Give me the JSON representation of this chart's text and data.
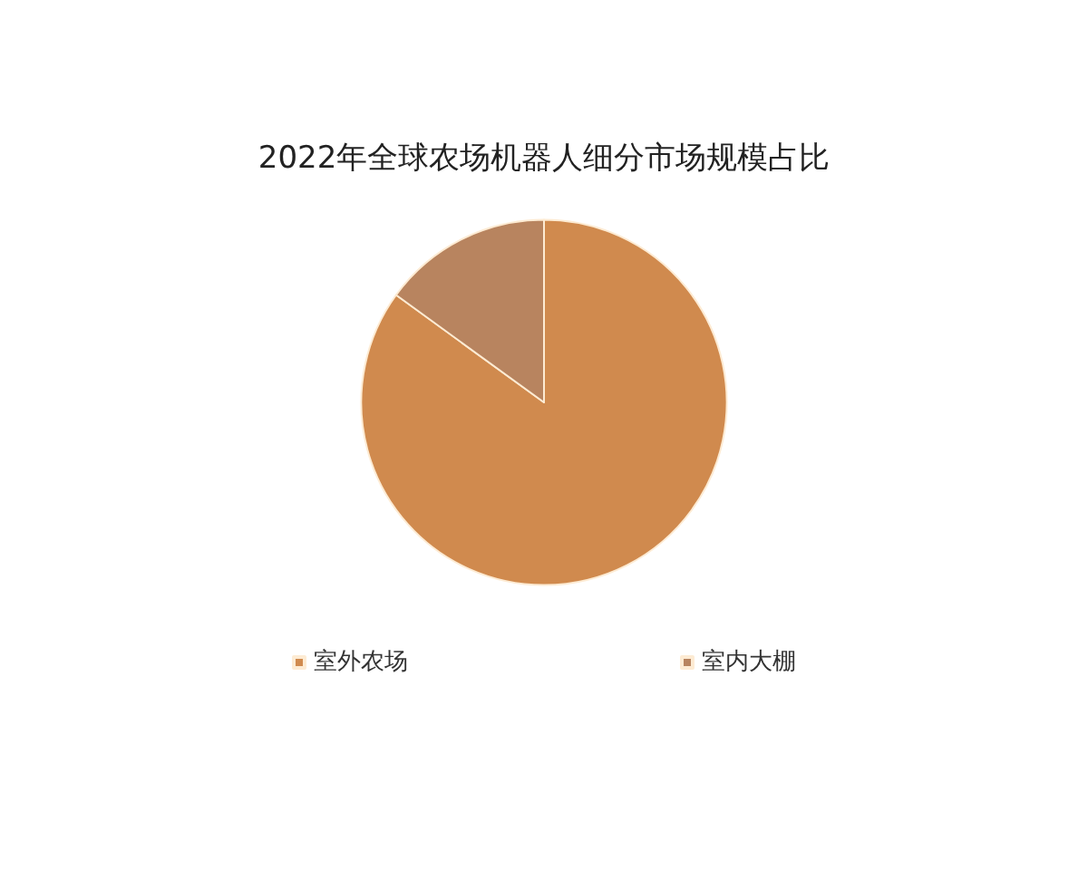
{
  "chart_data": {
    "type": "pie",
    "title": "2022年全球农场机器人细分市场规模占比",
    "categories": [
      "室外农场",
      "室内大棚"
    ],
    "values": [
      85,
      15
    ],
    "colors": [
      "#d08a4e",
      "#b8845f"
    ],
    "legend": "bottom"
  }
}
